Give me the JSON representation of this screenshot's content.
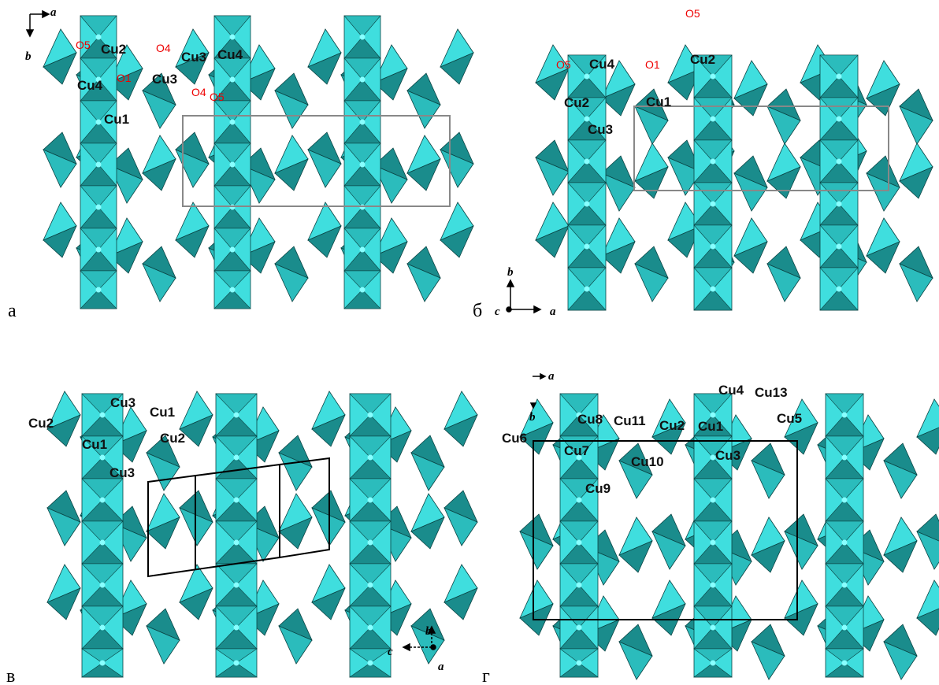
{
  "panels": [
    {
      "letter": "а",
      "axes": [
        "a",
        "b"
      ],
      "labels": [
        "O5",
        "Cu2",
        "O4",
        "Cu3",
        "Cu4",
        "O1",
        "Cu3",
        "Cu4",
        "O4",
        "O5",
        "Cu1"
      ]
    },
    {
      "letter": "б",
      "axes": [
        "b",
        "c",
        "a"
      ],
      "labels": [
        "O5",
        "Cu2",
        "O5",
        "Cu4",
        "O1",
        "Cu2",
        "Cu1",
        "Cu3"
      ]
    },
    {
      "letter": "в",
      "axes": [
        "b",
        "c",
        "a"
      ],
      "labels": [
        "Cu3",
        "Cu1",
        "Cu2",
        "Cu1",
        "Cu2",
        "Cu3"
      ]
    },
    {
      "letter": "г",
      "axes": [
        "a",
        "b"
      ],
      "labels": [
        "Cu4",
        "Cu13",
        "Cu5",
        "Cu8",
        "Cu11",
        "Cu2",
        "Cu1",
        "Cu6",
        "Cu7",
        "Cu3",
        "Cu10",
        "Cu9"
      ]
    }
  ]
}
